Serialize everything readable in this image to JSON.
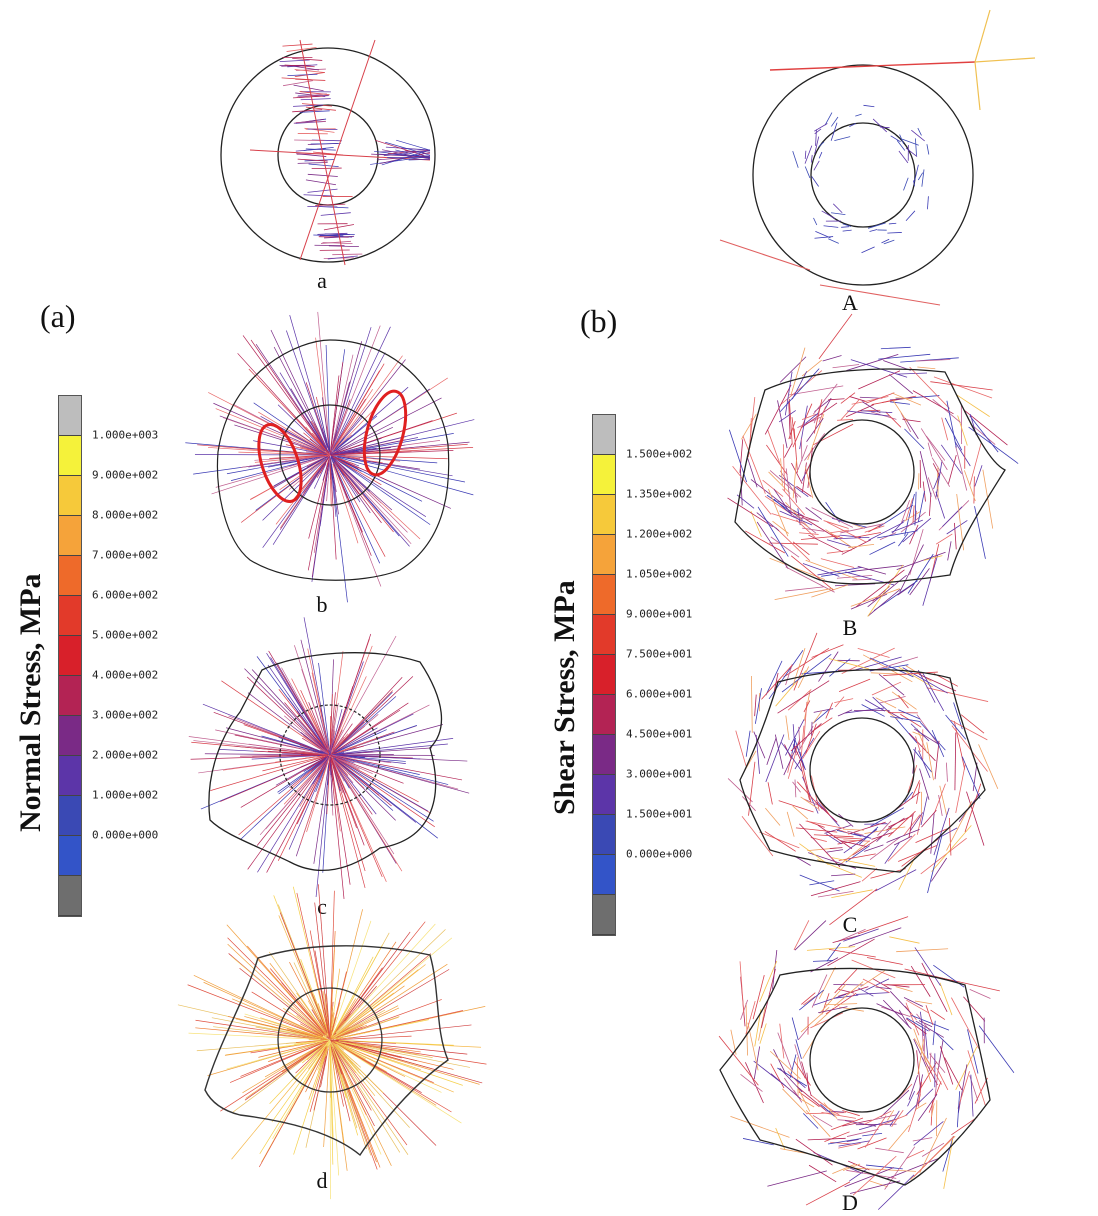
{
  "panel_a": {
    "tag": "(a)",
    "axis_title": "Normal Stress, MPa",
    "colorbar": {
      "ticks": [
        "1.000e+003",
        "9.000e+002",
        "8.000e+002",
        "7.000e+002",
        "6.000e+002",
        "5.000e+002",
        "4.000e+002",
        "3.000e+002",
        "2.000e+002",
        "1.000e+002",
        "0.000e+000"
      ],
      "bands": [
        "#bdbdbd",
        "#f5f23a",
        "#f6c93a",
        "#f5a33a",
        "#ee6a2a",
        "#e23a2a",
        "#d8202a",
        "#b32354",
        "#7a2a86",
        "#5c35a8",
        "#3a49b4",
        "#3354c8",
        "#6e6e6e"
      ]
    },
    "labels": [
      "a",
      "b",
      "c",
      "d"
    ]
  },
  "panel_b": {
    "tag": "(b)",
    "axis_title": "Shear Stress, MPa",
    "colorbar": {
      "ticks": [
        "1.500e+002",
        "1.350e+002",
        "1.200e+002",
        "1.050e+002",
        "9.000e+001",
        "7.500e+001",
        "6.000e+001",
        "4.500e+001",
        "3.000e+001",
        "1.500e+001",
        "0.000e+000"
      ],
      "bands": [
        "#bdbdbd",
        "#f5f23a",
        "#f6c93a",
        "#f5a33a",
        "#ee6a2a",
        "#e23a2a",
        "#d8202a",
        "#b32354",
        "#7a2a86",
        "#5c35a8",
        "#3a49b4",
        "#3354c8",
        "#6e6e6e"
      ]
    },
    "labels": [
      "A",
      "B",
      "C",
      "D"
    ]
  },
  "colors": {
    "low": "#3a3ab4",
    "mid": "#c0307a",
    "high": "#e83a3a",
    "max": "#f5c04a",
    "highlight_ellipse": "#e02020"
  }
}
